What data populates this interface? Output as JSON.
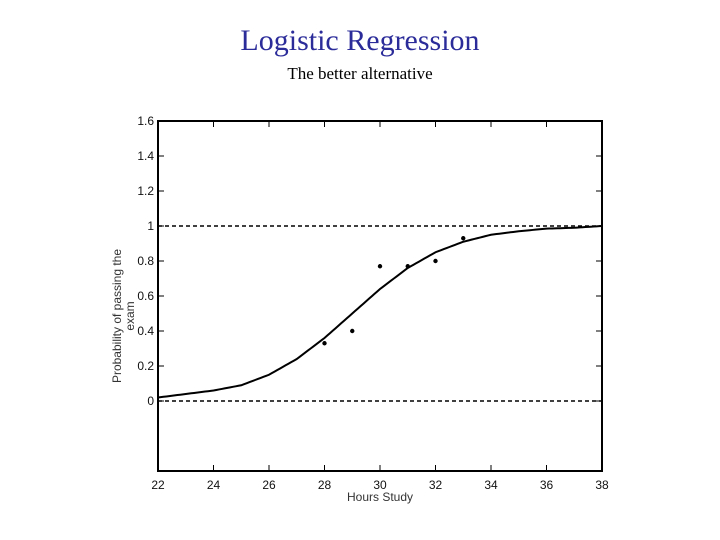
{
  "slide": {
    "title": "Logistic Regression",
    "subtitle": "The better alternative"
  },
  "chart_data": {
    "type": "scatter",
    "xlabel": "Hours Study",
    "ylabel_lines": [
      "Probability of passing the",
      "exam"
    ],
    "xlim": [
      22,
      38
    ],
    "ylim": [
      -0.4,
      1.6
    ],
    "xticks": [
      22,
      24,
      26,
      28,
      30,
      32,
      34,
      36,
      38
    ],
    "yticks": [
      0,
      0.2,
      0.4,
      0.6,
      0.8,
      1,
      1.2,
      1.4,
      1.6
    ],
    "reference_lines": [
      0,
      1
    ],
    "series": [
      {
        "kind": "points",
        "x": [
          28,
          29,
          30,
          31,
          32,
          33
        ],
        "y": [
          0.33,
          0.4,
          0.77,
          0.77,
          0.8,
          0.93
        ]
      },
      {
        "kind": "fitted-curve",
        "model": "logistic",
        "x": [
          22,
          23,
          24,
          25,
          26,
          27,
          28,
          29,
          30,
          31,
          32,
          33,
          34,
          35,
          36,
          37,
          38
        ],
        "y": [
          0.02,
          0.04,
          0.06,
          0.09,
          0.15,
          0.24,
          0.36,
          0.5,
          0.64,
          0.76,
          0.85,
          0.91,
          0.95,
          0.97,
          0.985,
          0.99,
          1.0
        ]
      }
    ],
    "grid": false,
    "legend": "none"
  }
}
